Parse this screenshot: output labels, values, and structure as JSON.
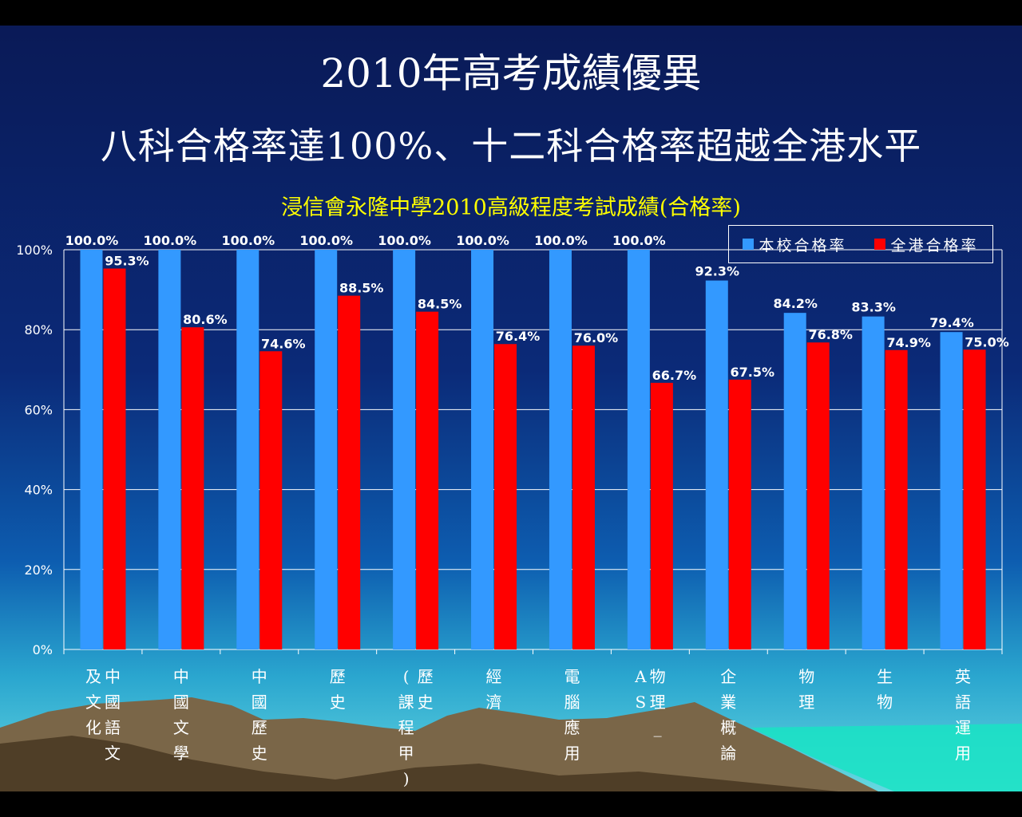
{
  "slide": {
    "title_line1": "2010年高考成績優異",
    "title_line2": "八科合格率達100%、十二科合格率超越全港水平"
  },
  "colors": {
    "school": "#3399ff",
    "hk": "#ff0000",
    "title_text": "#ffffff",
    "chart_title": "#ffff00"
  },
  "chart_data": {
    "type": "bar",
    "title": "浸信會永隆中學2010高級程度考試成績(合格率)",
    "categories": [
      "中國語文及文化",
      "中國文學",
      "中國歷史",
      "歷史",
      "歷史(課程甲)",
      "經濟",
      "電腦應用",
      "物理_AS",
      "企業概論",
      "物理",
      "生物",
      "英語運用"
    ],
    "category_lines": [
      [
        "中國語文",
        "及文化"
      ],
      [
        "中國文學"
      ],
      [
        "中國歷史"
      ],
      [
        "歷史"
      ],
      [
        "歷史",
        "(課程甲)"
      ],
      [
        "經濟"
      ],
      [
        "電腦應用"
      ],
      [
        "物理_",
        "AS"
      ],
      [
        "企業概論"
      ],
      [
        "物理"
      ],
      [
        "生物"
      ],
      [
        "英語運用"
      ]
    ],
    "series": [
      {
        "name": "本校合格率",
        "values": [
          100.0,
          100.0,
          100.0,
          100.0,
          100.0,
          100.0,
          100.0,
          100.0,
          92.3,
          84.2,
          83.3,
          79.4
        ],
        "labels": [
          "100.0%",
          "100.0%",
          "100.0%",
          "100.0%",
          "100.0%",
          "100.0%",
          "100.0%",
          "100.0%",
          "92.3%",
          "84.2%",
          "83.3%",
          "79.4%"
        ]
      },
      {
        "name": "全港合格率",
        "values": [
          95.3,
          80.6,
          74.6,
          88.5,
          84.5,
          76.4,
          76.0,
          66.7,
          67.5,
          76.8,
          74.9,
          75.0
        ],
        "labels": [
          "95.3%",
          "80.6%",
          "74.6%",
          "88.5%",
          "84.5%",
          "76.4%",
          "76.0%",
          "66.7%",
          "67.5%",
          "76.8%",
          "74.9%",
          "75.0%"
        ]
      }
    ],
    "ylim": [
      0,
      100
    ],
    "yticks": [
      "0%",
      "20%",
      "40%",
      "60%",
      "80%",
      "100%"
    ],
    "grid": true,
    "legend_position": "top-right"
  }
}
